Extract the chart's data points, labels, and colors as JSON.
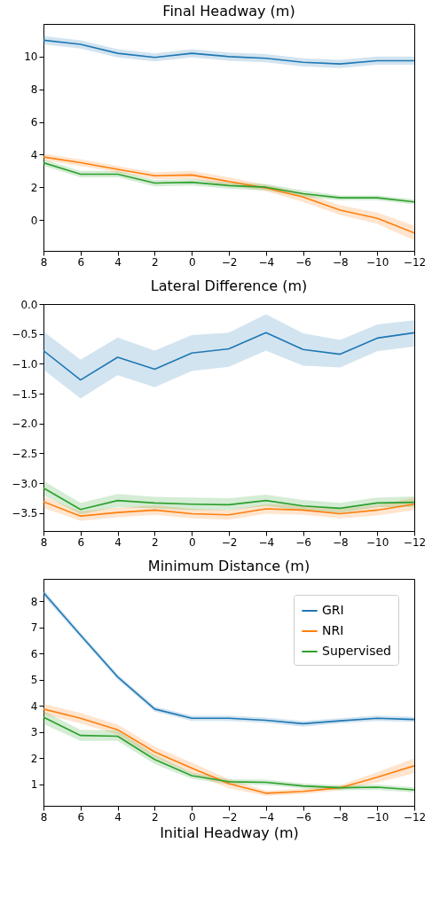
{
  "chart_data": [
    {
      "type": "line",
      "title": "Final Headway (m)",
      "x": [
        8,
        6,
        4,
        2,
        0,
        -2,
        -4,
        -6,
        -8,
        -10,
        -12
      ],
      "xlim": [
        8,
        -12
      ],
      "xticks": [
        8,
        6,
        4,
        2,
        0,
        {
          "value": -2,
          "label": "−2"
        },
        {
          "value": -4,
          "label": "−4"
        },
        {
          "value": -6,
          "label": "−6"
        },
        {
          "value": -8,
          "label": "−8"
        },
        {
          "value": -10,
          "label": "−10"
        },
        {
          "value": -12,
          "label": "−12"
        }
      ],
      "ylim": [
        -1.9,
        12
      ],
      "yticks": [
        0,
        2,
        4,
        6,
        8,
        10
      ],
      "grid": false,
      "legend": false,
      "series": [
        {
          "color": "#1f77b4",
          "values": [
            11.0,
            10.75,
            10.2,
            9.95,
            10.2,
            10.0,
            9.9,
            9.65,
            9.55,
            9.75,
            9.75
          ],
          "lower": [
            10.75,
            10.5,
            9.95,
            9.7,
            9.95,
            9.75,
            9.65,
            9.4,
            9.3,
            9.5,
            9.5
          ],
          "upper": [
            11.25,
            11.0,
            10.45,
            10.2,
            10.45,
            10.25,
            10.15,
            9.9,
            9.8,
            10.0,
            10.0
          ]
        },
        {
          "color": "#ff7f0e",
          "values": [
            3.85,
            3.5,
            3.1,
            2.7,
            2.75,
            2.35,
            1.95,
            1.4,
            0.6,
            0.1,
            -0.8
          ],
          "lower": [
            3.65,
            3.3,
            2.9,
            2.5,
            2.5,
            2.1,
            1.75,
            1.1,
            0.3,
            -0.25,
            -1.25
          ],
          "upper": [
            4.05,
            3.7,
            3.3,
            2.9,
            3.0,
            2.6,
            2.15,
            1.65,
            0.9,
            0.45,
            -0.35
          ]
        },
        {
          "color": "#2ca02c",
          "values": [
            3.5,
            2.8,
            2.8,
            2.25,
            2.3,
            2.1,
            2.0,
            1.6,
            1.35,
            1.35,
            1.1
          ],
          "lower": [
            3.3,
            2.6,
            2.6,
            2.05,
            2.1,
            1.9,
            1.8,
            1.4,
            1.2,
            1.2,
            0.95
          ],
          "upper": [
            3.7,
            3.0,
            3.0,
            2.45,
            2.5,
            2.3,
            2.2,
            1.8,
            1.5,
            1.5,
            1.25
          ]
        }
      ]
    },
    {
      "type": "line",
      "title": "Lateral Difference (m)",
      "x": [
        8,
        6,
        4,
        2,
        0,
        -2,
        -4,
        -6,
        -8,
        -10,
        -12
      ],
      "xlim": [
        8,
        -12
      ],
      "xticks": [
        8,
        6,
        4,
        2,
        0,
        {
          "value": -2,
          "label": "−2"
        },
        {
          "value": -4,
          "label": "−4"
        },
        {
          "value": -6,
          "label": "−6"
        },
        {
          "value": -8,
          "label": "−8"
        },
        {
          "value": -10,
          "label": "−10"
        },
        {
          "value": -12,
          "label": "−12"
        }
      ],
      "ylim": [
        -3.8,
        0
      ],
      "yticks": [
        {
          "value": 0,
          "label": "0.0"
        },
        {
          "value": -0.5,
          "label": "−0.5"
        },
        {
          "value": -1,
          "label": "−1.0"
        },
        {
          "value": -1.5,
          "label": "−1.5"
        },
        {
          "value": -2,
          "label": "−2.0"
        },
        {
          "value": -2.5,
          "label": "−2.5"
        },
        {
          "value": -3,
          "label": "−3.0"
        },
        {
          "value": -3.5,
          "label": "−3.5"
        }
      ],
      "grid": false,
      "legend": false,
      "series": [
        {
          "color": "#1f77b4",
          "values": [
            -0.78,
            -1.27,
            -0.89,
            -1.09,
            -0.82,
            -0.75,
            -0.48,
            -0.76,
            -0.84,
            -0.57,
            -0.48
          ],
          "lower": [
            -1.1,
            -1.58,
            -1.19,
            -1.39,
            -1.12,
            -1.05,
            -0.78,
            -1.03,
            -1.06,
            -0.79,
            -0.71
          ],
          "upper": [
            -0.46,
            -0.93,
            -0.56,
            -0.78,
            -0.52,
            -0.48,
            -0.17,
            -0.49,
            -0.6,
            -0.34,
            -0.27
          ]
        },
        {
          "color": "#ff7f0e",
          "values": [
            -3.31,
            -3.55,
            -3.49,
            -3.45,
            -3.51,
            -3.53,
            -3.43,
            -3.45,
            -3.51,
            -3.45,
            -3.35
          ],
          "lower": [
            -3.41,
            -3.63,
            -3.57,
            -3.53,
            -3.59,
            -3.61,
            -3.51,
            -3.53,
            -3.59,
            -3.54,
            -3.45
          ],
          "upper": [
            -3.22,
            -3.47,
            -3.41,
            -3.37,
            -3.43,
            -3.45,
            -3.35,
            -3.37,
            -3.43,
            -3.37,
            -3.24
          ]
        },
        {
          "color": "#2ca02c",
          "values": [
            -3.08,
            -3.44,
            -3.29,
            -3.33,
            -3.35,
            -3.36,
            -3.29,
            -3.38,
            -3.42,
            -3.33,
            -3.32
          ],
          "lower": [
            -3.2,
            -3.52,
            -3.4,
            -3.42,
            -3.45,
            -3.45,
            -3.38,
            -3.46,
            -3.5,
            -3.4,
            -3.4
          ],
          "upper": [
            -2.96,
            -3.33,
            -3.18,
            -3.23,
            -3.24,
            -3.25,
            -3.19,
            -3.28,
            -3.33,
            -3.24,
            -3.22
          ]
        }
      ]
    },
    {
      "type": "line",
      "title": "Minimum Distance (m)",
      "xlabel": "Initial Headway (m)",
      "x": [
        8,
        6,
        4,
        2,
        0,
        -2,
        -4,
        -6,
        -8,
        -10,
        -12
      ],
      "xlim": [
        8,
        -12
      ],
      "xticks": [
        8,
        6,
        4,
        2,
        0,
        {
          "value": -2,
          "label": "−2"
        },
        {
          "value": -4,
          "label": "−4"
        },
        {
          "value": -6,
          "label": "−6"
        },
        {
          "value": -8,
          "label": "−8"
        },
        {
          "value": -10,
          "label": "−10"
        },
        {
          "value": -12,
          "label": "−12"
        }
      ],
      "ylim": [
        0.17,
        8.85
      ],
      "yticks": [
        1,
        2,
        3,
        4,
        5,
        6,
        7,
        8
      ],
      "grid": false,
      "legend": "top right",
      "series": [
        {
          "name": "GRI",
          "color": "#1f77b4",
          "values": [
            8.32,
            6.7,
            5.1,
            3.87,
            3.52,
            3.52,
            3.44,
            3.31,
            3.42,
            3.52,
            3.47
          ],
          "lower": [
            8.2,
            6.6,
            5.0,
            3.77,
            3.42,
            3.42,
            3.34,
            3.2,
            3.32,
            3.42,
            3.37
          ],
          "upper": [
            8.44,
            6.8,
            5.2,
            3.97,
            3.62,
            3.62,
            3.54,
            3.42,
            3.52,
            3.62,
            3.57
          ]
        },
        {
          "name": "NRI",
          "color": "#ff7f0e",
          "values": [
            3.87,
            3.52,
            3.08,
            2.23,
            1.61,
            1.02,
            0.65,
            0.72,
            0.86,
            1.26,
            1.7
          ],
          "lower": [
            3.67,
            3.32,
            2.9,
            2.03,
            1.4,
            0.85,
            0.55,
            0.62,
            0.76,
            1.06,
            1.42
          ],
          "upper": [
            4.07,
            3.72,
            3.28,
            2.43,
            1.82,
            1.19,
            0.75,
            0.82,
            0.96,
            1.46,
            1.98
          ]
        },
        {
          "name": "Supervised",
          "color": "#2ca02c",
          "values": [
            3.56,
            2.86,
            2.83,
            1.94,
            1.32,
            1.09,
            1.07,
            0.93,
            0.86,
            0.88,
            0.78
          ],
          "lower": [
            3.3,
            2.65,
            2.65,
            1.76,
            1.2,
            0.99,
            0.97,
            0.83,
            0.76,
            0.78,
            0.68
          ],
          "upper": [
            3.8,
            3.08,
            3.05,
            2.12,
            1.44,
            1.19,
            1.17,
            1.03,
            0.96,
            0.98,
            0.88
          ]
        }
      ]
    }
  ]
}
